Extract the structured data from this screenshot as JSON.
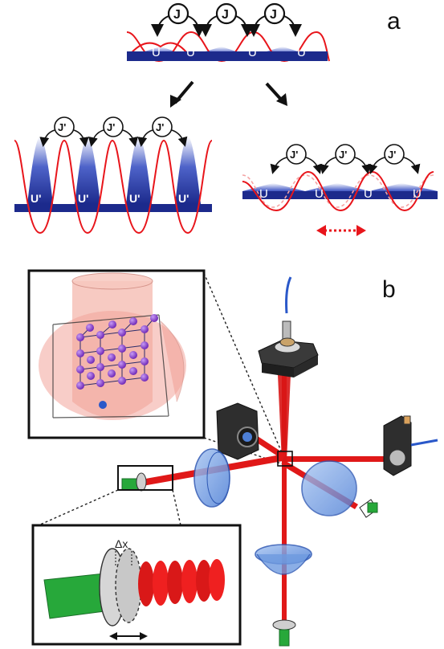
{
  "panel_labels": {
    "a": "a",
    "b": "b"
  },
  "panel_a": {
    "top_lattice": {
      "tunneling_label": "J",
      "well_label": "U",
      "tunneling_count": 3,
      "well_count": 4
    },
    "left_lattice": {
      "tunneling_label": "J'",
      "well_label": "U'",
      "tunneling_count": 3,
      "well_count": 4
    },
    "right_lattice": {
      "tunneling_label": "J'",
      "well_label": "U",
      "tunneling_count": 3,
      "well_count": 4
    }
  },
  "panel_b": {
    "zoom_inset": {
      "label": "Δx"
    }
  },
  "colors": {
    "lattice_red": "#e8151b",
    "well_blue": "#1c2a8c",
    "beam_red": "#e01818",
    "rod_green": "#27a83a",
    "lens_blue": "#6f9be0",
    "atom_purple": "#8a3fd1"
  }
}
